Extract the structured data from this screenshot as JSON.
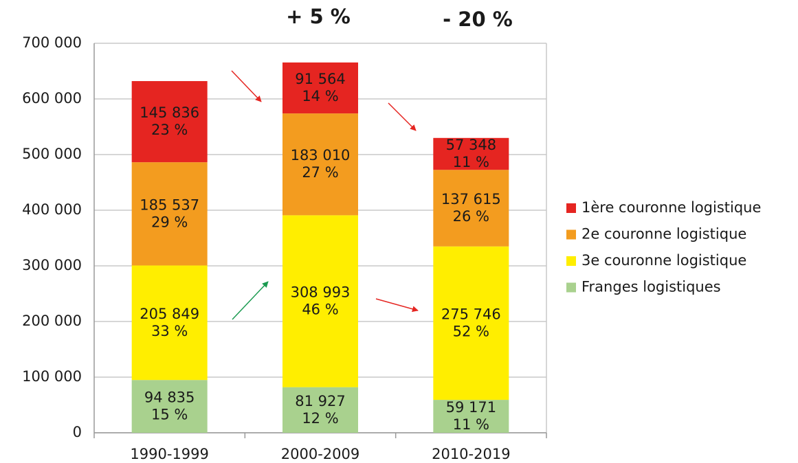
{
  "chart_data": {
    "type": "stacked_bar",
    "categories": [
      "1990-1999",
      "2000-2009",
      "2010-2019"
    ],
    "series": [
      {
        "name": "Franges logistiques",
        "color": "#a9d18e",
        "values": [
          94835,
          81927,
          59171
        ],
        "value_labels": [
          "94 835",
          "81 927",
          "59 171"
        ],
        "percent_labels": [
          "15 %",
          "12 %",
          "11 %"
        ]
      },
      {
        "name": "3e couronne logistique",
        "color": "#ffee00",
        "values": [
          205849,
          308993,
          275746
        ],
        "value_labels": [
          "205 849",
          "308 993",
          "275 746"
        ],
        "percent_labels": [
          "33 %",
          "46 %",
          "52 %"
        ]
      },
      {
        "name": "2e couronne logistique",
        "color": "#f39c1f",
        "values": [
          185537,
          183010,
          137615
        ],
        "value_labels": [
          "185 537",
          "183 010",
          "137 615"
        ],
        "percent_labels": [
          "29 %",
          "27 %",
          "26 %"
        ]
      },
      {
        "name": "1ère couronne logistique",
        "color": "#e52521",
        "values": [
          145836,
          91564,
          57348
        ],
        "value_labels": [
          "145 836",
          "91 564",
          "57 348"
        ],
        "percent_labels": [
          "23 %",
          "14 %",
          "11 %"
        ]
      }
    ],
    "annotations": [
      {
        "text": "+ 5 %",
        "color": "#1a9a50"
      },
      {
        "text": "- 20 %",
        "color": "#d42a2a"
      }
    ],
    "ylim": [
      0,
      700000
    ],
    "yticks": [
      0,
      {
        "value": 100000,
        "label": "100 000"
      },
      {
        "value": 200000,
        "label": "200 000"
      },
      {
        "value": 300000,
        "label": "300 000"
      },
      {
        "value": 400000,
        "label": "400 000"
      },
      {
        "value": 500000,
        "label": "500 000"
      },
      {
        "value": 600000,
        "label": "600 000"
      },
      {
        "value": 700000,
        "label": "700 000"
      }
    ],
    "grid": true,
    "legend": "right"
  }
}
